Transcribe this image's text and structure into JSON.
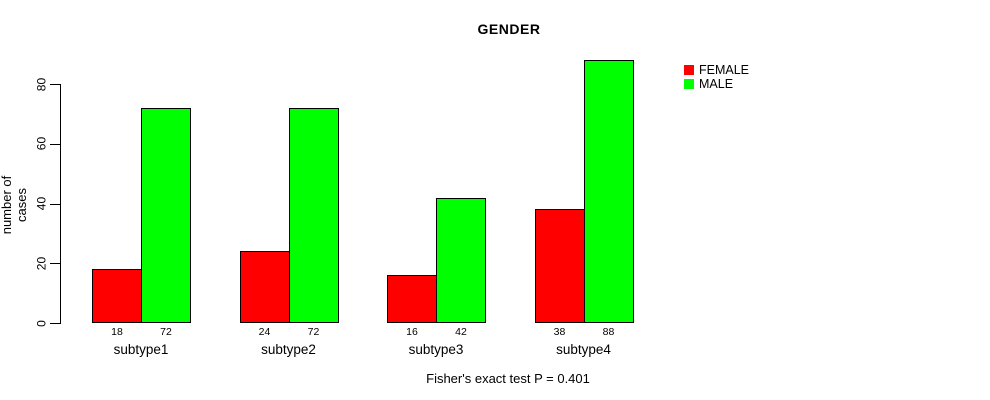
{
  "chart_data": {
    "type": "bar",
    "title": "GENDER",
    "ylabel": "number of cases",
    "xlabel": "",
    "categories": [
      "subtype1",
      "subtype2",
      "subtype3",
      "subtype4"
    ],
    "series": [
      {
        "name": "FEMALE",
        "color": "#ff0000",
        "values": [
          18,
          24,
          16,
          38
        ]
      },
      {
        "name": "MALE",
        "color": "#00ff00",
        "values": [
          72,
          72,
          42,
          88
        ]
      }
    ],
    "bar_value_labels": [
      [
        "18",
        "72"
      ],
      [
        "24",
        "72"
      ],
      [
        "16",
        "42"
      ],
      [
        "38",
        "88"
      ]
    ],
    "y_ticks": [
      0,
      20,
      40,
      60,
      80
    ],
    "ylim": [
      0,
      88
    ],
    "grid": false,
    "legend_position": "right",
    "footnote": "Fisher's exact test P = 0.401"
  }
}
